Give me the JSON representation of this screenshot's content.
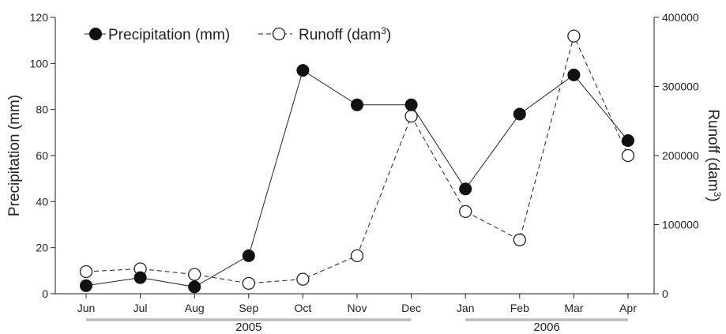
{
  "chart_data": {
    "type": "line",
    "categories": [
      "Jun",
      "Jul",
      "Aug",
      "Sep",
      "Oct",
      "Nov",
      "Dec",
      "Jan",
      "Feb",
      "Mar",
      "Apr"
    ],
    "y_left": {
      "label": "Precipitation (mm)",
      "range": [
        0,
        120
      ],
      "ticks": [
        "0",
        "20",
        "40",
        "60",
        "80",
        "100",
        "120"
      ]
    },
    "y_right": {
      "label_main": "Runoff (dam",
      "label_sup": "3",
      "label_close": ")",
      "range": [
        0,
        400000
      ],
      "ticks": [
        "0",
        "100000",
        "200000",
        "300000",
        "400000"
      ]
    },
    "series": [
      {
        "name": "Precipitation (mm)",
        "axis": "left",
        "marker": "filled-circle",
        "line_style": "solid",
        "values": [
          3.5,
          7,
          3,
          16.5,
          97,
          82,
          82,
          45.5,
          78,
          95,
          66.5
        ]
      },
      {
        "name_main": "Runoff (dam",
        "name_sup": "3",
        "name_close": ")",
        "axis": "right",
        "marker": "open-circle",
        "line_style": "dashed",
        "values": [
          32000,
          36000,
          28000,
          15000,
          21000,
          55000,
          257000,
          119000,
          78000,
          373000,
          200000
        ]
      }
    ],
    "year_groups": [
      {
        "label": "2005",
        "from": "Jun",
        "to": "Dec"
      },
      {
        "label": "2006",
        "from": "Jan",
        "to": "Apr"
      }
    ],
    "legend_placement": "top-left",
    "grid": false,
    "colors": {
      "axis": "#222222",
      "line": "#222222",
      "year_bar": "#bdbdbd",
      "filled_marker": "#111111",
      "open_marker_fill": "#ffffff"
    }
  }
}
